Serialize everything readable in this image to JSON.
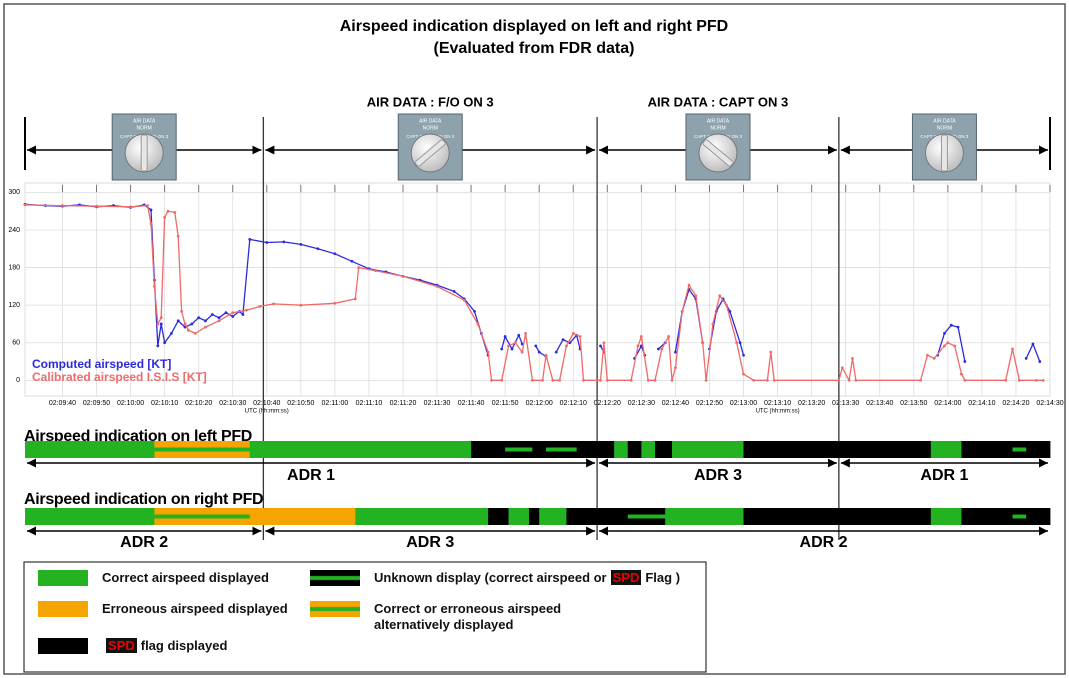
{
  "chart_data": {
    "type": "line",
    "title": "Airspeed indication displayed on left and right PFD",
    "subtitle": "(Evaluated from FDR data)",
    "x_label": "UTC (hh:mm:ss)",
    "xlim": [
      "02:09:29",
      "02:14:30"
    ],
    "xticks": [
      "02:09:40",
      "02:09:50",
      "02:10:00",
      "02:10:10",
      "02:10:20",
      "02:10:30",
      "02:10:40",
      "02:10:50",
      "02:11:00",
      "02:11:10",
      "02:11:20",
      "02:11:30",
      "02:11:40",
      "02:11:50",
      "02:12:00",
      "02:12:10",
      "02:12:20",
      "02:12:30",
      "02:12:40",
      "02:12:50",
      "02:13:00",
      "02:13:10",
      "02:13:20",
      "02:13:30",
      "02:13:40",
      "02:13:50",
      "02:14:00",
      "02:14:10",
      "02:14:20",
      "02:14:30"
    ],
    "ylim": [
      -25,
      315
    ],
    "yticks": [
      0,
      60,
      120,
      180,
      240,
      300
    ],
    "grid": true,
    "selector_labels": {
      "title": "AIR DATA",
      "norm": "NORM",
      "capt": "CAPT ON 3",
      "fo": "F/O ON 3"
    },
    "phases": [
      {
        "start": "02:09:29",
        "end": "02:10:39",
        "header": null,
        "setting": "NORM"
      },
      {
        "start": "02:10:39",
        "end": "02:12:17",
        "header": "AIR DATA : F/O ON 3",
        "setting": "F/O ON 3"
      },
      {
        "start": "02:12:17",
        "end": "02:13:28",
        "header": "AIR DATA : CAPT ON 3",
        "setting": "CAPT ON 3"
      },
      {
        "start": "02:13:28",
        "end": "02:14:30",
        "header": null,
        "setting": "NORM"
      }
    ],
    "series": [
      {
        "name": "Computed airspeed [KT]",
        "color": "#2b2bdc",
        "x": [
          "02:09:29",
          "02:09:35",
          "02:09:40",
          "02:09:45",
          "02:09:50",
          "02:09:55",
          "02:10:00",
          "02:10:04",
          "02:10:06",
          "02:10:07",
          "02:10:08",
          "02:10:09",
          "02:10:10",
          "02:10:12",
          "02:10:14",
          "02:10:16",
          "02:10:18",
          "02:10:20",
          "02:10:22",
          "02:10:24",
          "02:10:26",
          "02:10:28",
          "02:10:30",
          "02:10:32",
          "02:10:33",
          "02:10:35",
          "02:10:40",
          "02:10:45",
          "02:10:50",
          "02:10:55",
          "02:11:00",
          "02:11:05",
          "02:11:10",
          "02:11:15",
          "02:11:20",
          "02:11:25",
          "02:11:30",
          "02:11:35",
          "02:11:38",
          "02:11:41",
          "02:11:43",
          "02:11:45",
          "02:11:47",
          "02:11:49",
          "02:11:50",
          "02:11:52",
          "02:11:54",
          "02:11:55",
          "02:11:56",
          "02:11:59",
          "02:12:00",
          "02:12:02",
          "02:12:03",
          "02:12:05",
          "02:12:07",
          "02:12:09",
          "02:12:11",
          "02:12:12",
          "02:12:14",
          "02:12:18",
          "02:12:19",
          "02:12:20",
          "02:12:28",
          "02:12:30",
          "02:12:31",
          "02:12:32",
          "02:12:35",
          "02:12:37",
          "02:12:38",
          "02:12:40",
          "02:12:42",
          "02:12:44",
          "02:12:46",
          "02:12:48",
          "02:12:49",
          "02:12:50",
          "02:12:52",
          "02:12:54",
          "02:12:56",
          "02:12:59",
          "02:13:00",
          "02:13:01",
          "02:13:57",
          "02:13:59",
          "02:14:01",
          "02:14:03",
          "02:14:05",
          "02:14:06",
          "02:14:23",
          "02:14:25",
          "02:14:27"
        ],
        "values": [
          281,
          279,
          278,
          280,
          277,
          279,
          276,
          280,
          272,
          160,
          55,
          90,
          60,
          75,
          95,
          85,
          90,
          100,
          95,
          105,
          100,
          108,
          102,
          110,
          105,
          225,
          220,
          221,
          217,
          210,
          202,
          190,
          178,
          173,
          166,
          160,
          152,
          142,
          130,
          110,
          75,
          40,
          null,
          50,
          70,
          50,
          72,
          58,
          null,
          55,
          45,
          38,
          null,
          45,
          65,
          60,
          72,
          50,
          null,
          55,
          45,
          null,
          35,
          55,
          40,
          null,
          50,
          60,
          null,
          45,
          110,
          145,
          130,
          60,
          null,
          50,
          110,
          130,
          110,
          60,
          40,
          null,
          40,
          75,
          88,
          85,
          30,
          null,
          35,
          58,
          30
        ]
      },
      {
        "name": "Calibrated airspeed I.S.I.S [KT]",
        "color": "#f06a6a",
        "x": [
          "02:09:29",
          "02:09:40",
          "02:09:50",
          "02:10:00",
          "02:10:05",
          "02:10:06",
          "02:10:07",
          "02:10:08",
          "02:10:09",
          "02:10:10",
          "02:10:11",
          "02:10:13",
          "02:10:14",
          "02:10:15",
          "02:10:16",
          "02:10:17",
          "02:10:19",
          "02:10:22",
          "02:10:26",
          "02:10:30",
          "02:10:34",
          "02:10:38",
          "02:10:42",
          "02:10:50",
          "02:11:00",
          "02:11:06",
          "02:11:07",
          "02:11:12",
          "02:11:20",
          "02:11:30",
          "02:11:38",
          "02:11:42",
          "02:11:45",
          "02:11:46",
          "02:11:49",
          "02:11:51",
          "02:11:53",
          "02:11:55",
          "02:11:56",
          "02:11:58",
          "02:12:01",
          "02:12:02",
          "02:12:04",
          "02:12:06",
          "02:12:08",
          "02:12:10",
          "02:12:12",
          "02:12:13",
          "02:12:18",
          "02:12:19",
          "02:12:20",
          "02:12:27",
          "02:12:29",
          "02:12:30",
          "02:12:32",
          "02:12:34",
          "02:12:36",
          "02:12:38",
          "02:12:39",
          "02:12:40",
          "02:12:42",
          "02:12:44",
          "02:12:46",
          "02:12:48",
          "02:12:49",
          "02:12:51",
          "02:12:53",
          "02:12:55",
          "02:12:58",
          "02:13:00",
          "02:13:03",
          "02:13:07",
          "02:13:08",
          "02:13:09",
          "02:13:28",
          "02:13:29",
          "02:13:31",
          "02:13:32",
          "02:13:33",
          "02:13:52",
          "02:13:54",
          "02:13:56",
          "02:13:59",
          "02:14:00",
          "02:14:02",
          "02:14:04",
          "02:14:05",
          "02:14:17",
          "02:14:19",
          "02:14:21",
          "02:14:26",
          "02:14:28"
        ],
        "values": [
          280,
          279,
          278,
          277,
          279,
          250,
          150,
          90,
          100,
          260,
          270,
          268,
          230,
          110,
          90,
          80,
          75,
          85,
          95,
          108,
          112,
          118,
          122,
          120,
          123,
          130,
          180,
          175,
          166,
          150,
          128,
          90,
          45,
          0,
          0,
          55,
          60,
          45,
          75,
          0,
          0,
          40,
          0,
          0,
          55,
          75,
          70,
          0,
          0,
          60,
          0,
          0,
          55,
          70,
          0,
          0,
          50,
          70,
          0,
          20,
          110,
          152,
          135,
          60,
          0,
          90,
          135,
          120,
          60,
          10,
          0,
          0,
          45,
          0,
          0,
          20,
          0,
          35,
          0,
          0,
          40,
          35,
          55,
          60,
          55,
          10,
          0,
          0,
          50,
          0,
          0,
          0
        ]
      }
    ],
    "status_bars": [
      {
        "title": "Airspeed indication on left PFD",
        "segments": [
          {
            "start": "02:09:29",
            "end": "02:10:07",
            "color": "#22b222"
          },
          {
            "start": "02:10:07",
            "end": "02:10:35",
            "color": "#f5a400",
            "stripe": "#22b222"
          },
          {
            "start": "02:10:35",
            "end": "02:11:40",
            "color": "#22b222"
          },
          {
            "start": "02:11:40",
            "end": "02:11:50",
            "color": "#000000"
          },
          {
            "start": "02:11:50",
            "end": "02:11:58",
            "color": "#000000",
            "stripe": "#22b222"
          },
          {
            "start": "02:11:58",
            "end": "02:12:02",
            "color": "#000000"
          },
          {
            "start": "02:12:02",
            "end": "02:12:11",
            "color": "#000000",
            "stripe": "#22b222"
          },
          {
            "start": "02:12:11",
            "end": "02:12:22",
            "color": "#000000"
          },
          {
            "start": "02:12:22",
            "end": "02:12:26",
            "color": "#22b222"
          },
          {
            "start": "02:12:26",
            "end": "02:12:30",
            "color": "#000000"
          },
          {
            "start": "02:12:30",
            "end": "02:12:34",
            "color": "#22b222"
          },
          {
            "start": "02:12:34",
            "end": "02:12:39",
            "color": "#000000"
          },
          {
            "start": "02:12:39",
            "end": "02:13:00",
            "color": "#22b222"
          },
          {
            "start": "02:13:00",
            "end": "02:13:55",
            "color": "#000000"
          },
          {
            "start": "02:13:55",
            "end": "02:14:04",
            "color": "#22b222"
          },
          {
            "start": "02:14:04",
            "end": "02:14:19",
            "color": "#000000"
          },
          {
            "start": "02:14:19",
            "end": "02:14:23",
            "color": "#000000",
            "stripe": "#22b222"
          },
          {
            "start": "02:14:23",
            "end": "02:14:30",
            "color": "#000000"
          }
        ],
        "adr": [
          {
            "label": "ADR 1",
            "start": "02:09:29",
            "end": "02:12:17"
          },
          {
            "label": "ADR 3",
            "start": "02:12:17",
            "end": "02:13:28"
          },
          {
            "label": "ADR 1",
            "start": "02:13:28",
            "end": "02:14:30"
          }
        ]
      },
      {
        "title": "Airspeed indication on right PFD",
        "segments": [
          {
            "start": "02:09:29",
            "end": "02:10:07",
            "color": "#22b222"
          },
          {
            "start": "02:10:07",
            "end": "02:10:35",
            "color": "#f5a400",
            "stripe": "#22b222"
          },
          {
            "start": "02:10:35",
            "end": "02:11:06",
            "color": "#f5a400"
          },
          {
            "start": "02:11:06",
            "end": "02:11:45",
            "color": "#22b222"
          },
          {
            "start": "02:11:45",
            "end": "02:11:51",
            "color": "#000000"
          },
          {
            "start": "02:11:51",
            "end": "02:11:57",
            "color": "#22b222"
          },
          {
            "start": "02:11:57",
            "end": "02:12:00",
            "color": "#000000"
          },
          {
            "start": "02:12:00",
            "end": "02:12:08",
            "color": "#22b222"
          },
          {
            "start": "02:12:08",
            "end": "02:12:26",
            "color": "#000000"
          },
          {
            "start": "02:12:26",
            "end": "02:12:37",
            "color": "#000000",
            "stripe": "#22b222"
          },
          {
            "start": "02:12:37",
            "end": "02:13:00",
            "color": "#22b222"
          },
          {
            "start": "02:13:00",
            "end": "02:13:55",
            "color": "#000000"
          },
          {
            "start": "02:13:55",
            "end": "02:14:04",
            "color": "#22b222"
          },
          {
            "start": "02:14:04",
            "end": "02:14:19",
            "color": "#000000"
          },
          {
            "start": "02:14:19",
            "end": "02:14:23",
            "color": "#000000",
            "stripe": "#22b222"
          },
          {
            "start": "02:14:23",
            "end": "02:14:30",
            "color": "#000000"
          }
        ],
        "adr": [
          {
            "label": "ADR 2",
            "start": "02:09:29",
            "end": "02:10:39"
          },
          {
            "label": "ADR 3",
            "start": "02:10:39",
            "end": "02:12:17"
          },
          {
            "label": "ADR 2",
            "start": "02:12:17",
            "end": "02:14:30"
          }
        ]
      }
    ],
    "legend_items": [
      {
        "color": "#22b222",
        "text": "Correct airspeed displayed"
      },
      {
        "color": "#f5a400",
        "text": "Erroneous airspeed displayed"
      },
      {
        "color": "#000000",
        "flag": "SPD",
        "after": "flag displayed"
      },
      {
        "color": "#000000",
        "stripe": "#22b222",
        "text": "Unknown display (correct airspeed or",
        "flag": "SPD",
        "after": "Flag )"
      },
      {
        "color": "#f5a400",
        "stripe": "#22b222",
        "text": "Correct or erroneous airspeed alternatively displayed"
      }
    ]
  }
}
